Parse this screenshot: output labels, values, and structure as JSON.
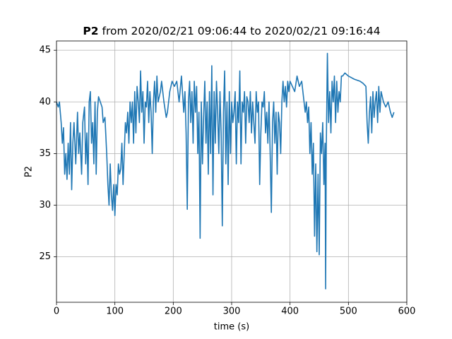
{
  "chart_data": {
    "type": "line",
    "title": {
      "bold": "P2",
      "text": "from 2020/02/21 09:06:44 to 2020/02/21 09:16:44"
    },
    "xlabel": "time (s)",
    "ylabel": "P2",
    "xlim": [
      0,
      600
    ],
    "ylim": [
      20.6,
      45.9
    ],
    "xticks": [
      0,
      100,
      200,
      300,
      400,
      500,
      600
    ],
    "yticks": [
      25,
      30,
      35,
      40,
      45
    ],
    "grid": true,
    "x": [
      0,
      3,
      5,
      8,
      10,
      12,
      14,
      16,
      18,
      20,
      22,
      24,
      26,
      28,
      30,
      33,
      36,
      38,
      40,
      43,
      45,
      48,
      50,
      52,
      54,
      56,
      58,
      60,
      62,
      64,
      66,
      68,
      70,
      72,
      75,
      78,
      80,
      83,
      86,
      88,
      90,
      92,
      94,
      96,
      98,
      100,
      102,
      104,
      106,
      108,
      110,
      112,
      114,
      116,
      118,
      120,
      122,
      124,
      126,
      128,
      130,
      132,
      134,
      136,
      138,
      140,
      142,
      144,
      146,
      148,
      150,
      152,
      154,
      156,
      158,
      160,
      162,
      164,
      166,
      168,
      170,
      172,
      174,
      178,
      180,
      184,
      188,
      190,
      194,
      198,
      202,
      206,
      210,
      214,
      218,
      220,
      222,
      224,
      226,
      228,
      230,
      232,
      234,
      236,
      238,
      240,
      242,
      244,
      246,
      248,
      250,
      252,
      254,
      256,
      258,
      260,
      262,
      264,
      266,
      268,
      270,
      272,
      274,
      276,
      278,
      280,
      282,
      284,
      286,
      288,
      290,
      292,
      294,
      296,
      298,
      300,
      302,
      304,
      306,
      308,
      310,
      312,
      314,
      316,
      318,
      320,
      322,
      324,
      326,
      328,
      330,
      332,
      334,
      336,
      338,
      340,
      342,
      344,
      346,
      348,
      350,
      352,
      354,
      356,
      358,
      360,
      362,
      364,
      366,
      368,
      370,
      372,
      374,
      376,
      378,
      380,
      382,
      384,
      386,
      388,
      390,
      392,
      394,
      396,
      398,
      400,
      404,
      408,
      412,
      416,
      420,
      424,
      426,
      428,
      430,
      432,
      434,
      436,
      438,
      440,
      442,
      444,
      446,
      448,
      450,
      452,
      454,
      456,
      458,
      460,
      461,
      462,
      464,
      466,
      468,
      470,
      472,
      474,
      476,
      478,
      480,
      482,
      484,
      486,
      488,
      490,
      494,
      500,
      510,
      520,
      525,
      530,
      532,
      534,
      536,
      538,
      540,
      542,
      544,
      546,
      548,
      550,
      552,
      554,
      556,
      560,
      564,
      568,
      572,
      575,
      578
    ],
    "series": [
      {
        "color": "#1f77b4",
        "values": [
          40,
          39.5,
          40,
          38,
          36,
          37.5,
          33,
          35,
          32.5,
          36,
          33,
          38,
          31.5,
          36,
          38,
          34,
          39,
          35,
          37,
          33,
          38,
          39.5,
          34,
          37,
          32,
          40,
          41,
          36,
          38,
          34,
          40,
          33,
          39,
          40.5,
          40,
          39.5,
          38,
          38.5,
          35,
          32,
          30,
          34,
          31,
          29.5,
          32,
          29,
          32,
          31,
          34,
          33,
          33.5,
          36,
          32,
          35,
          38,
          37,
          39,
          36,
          40,
          38,
          40,
          36,
          41,
          37,
          41.5,
          40,
          38,
          43,
          39,
          41,
          36,
          40,
          39.5,
          42,
          38,
          41,
          39,
          35,
          40,
          42,
          39,
          42.5,
          40,
          41,
          42,
          40,
          38.5,
          39,
          41,
          42,
          41.5,
          42,
          40,
          42.5,
          39,
          41,
          37,
          29.6,
          40,
          42,
          38,
          41,
          36,
          42,
          39,
          41.5,
          35,
          39,
          26.8,
          40,
          34,
          38.5,
          42,
          36,
          40,
          33,
          41,
          35,
          43.5,
          31,
          41,
          36,
          42,
          39,
          35,
          41,
          37,
          28,
          39,
          43,
          34,
          40,
          32,
          41,
          35,
          40,
          38,
          39,
          41,
          34,
          40,
          38,
          43,
          34,
          40,
          39,
          41,
          36,
          40.5,
          40,
          38,
          41,
          37,
          40,
          38,
          36,
          41,
          39,
          40,
          32,
          37,
          40,
          39.5,
          41,
          37,
          39,
          36,
          40,
          35,
          29.3,
          38,
          40,
          36,
          39,
          33,
          39,
          38,
          35,
          40,
          42,
          40,
          41.5,
          39.5,
          42,
          41,
          42,
          41.5,
          41,
          42.5,
          41.5,
          42,
          40,
          39,
          40,
          38,
          39.5,
          35,
          38,
          33,
          36,
          27,
          34,
          25.5,
          33,
          25.2,
          37,
          35,
          38,
          32,
          36,
          21.9,
          35,
          44.7,
          38,
          41,
          37,
          42,
          40,
          42.5,
          38,
          42,
          39,
          41,
          40,
          42.5,
          42.5,
          42.8,
          42.5,
          42.2,
          42,
          41.8,
          41.5,
          38,
          36,
          39,
          40.5,
          37,
          41,
          38.5,
          40,
          41,
          38,
          41.5,
          39,
          41,
          40,
          39.5,
          40,
          39,
          38.5,
          39
        ]
      }
    ]
  }
}
